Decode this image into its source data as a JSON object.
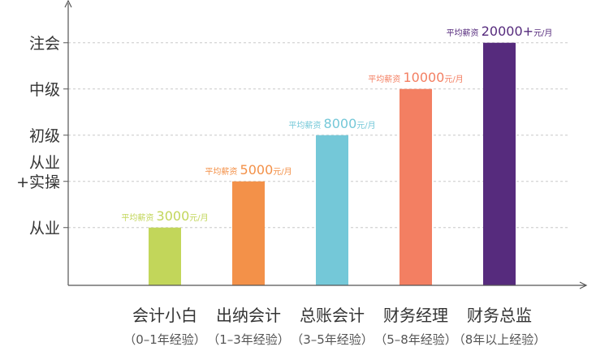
{
  "chart_data": {
    "type": "bar",
    "title": "",
    "xlabel": "",
    "ylabel": "",
    "y_tick_labels": [
      {
        "lines": [
          "从业"
        ],
        "value": 1
      },
      {
        "lines": [
          "从业",
          "+实操"
        ],
        "value": 2
      },
      {
        "lines": [
          "初级"
        ],
        "value": 3
      },
      {
        "lines": [
          "中级"
        ],
        "value": 4
      },
      {
        "lines": [
          "注会"
        ],
        "value": 5
      }
    ],
    "ylim": [
      0,
      5.7
    ],
    "grid": "dashed-horizontal",
    "categories": [
      {
        "name": "会计小白",
        "sub": "（0–1年经验）"
      },
      {
        "name": "出纳会计",
        "sub": "（1–3年经验）"
      },
      {
        "name": "总账会计",
        "sub": "（3–5年经验）"
      },
      {
        "name": "财务经理",
        "sub": "（5–8年经验）"
      },
      {
        "name": "财务总监",
        "sub": "（8年以上经验）"
      }
    ],
    "values": [
      1,
      2,
      3,
      4,
      5
    ],
    "bars": [
      {
        "prefix": "平均薪资",
        "amount": "3000",
        "unit": "元/月",
        "color": "#c2d65a"
      },
      {
        "prefix": "平均薪资",
        "amount": "5000",
        "unit": "元/月",
        "color": "#f39149"
      },
      {
        "prefix": "平均薪资",
        "amount": "8000",
        "unit": "元/月",
        "color": "#74c8d8"
      },
      {
        "prefix": "平均薪资",
        "amount": "10000",
        "unit": "元/月",
        "color": "#f37f62"
      },
      {
        "prefix": "平均薪资",
        "amount": "20000+",
        "unit": "元/月",
        "color": "#562b7d"
      }
    ],
    "salary_values": [
      3000,
      5000,
      8000,
      10000,
      20000
    ]
  }
}
